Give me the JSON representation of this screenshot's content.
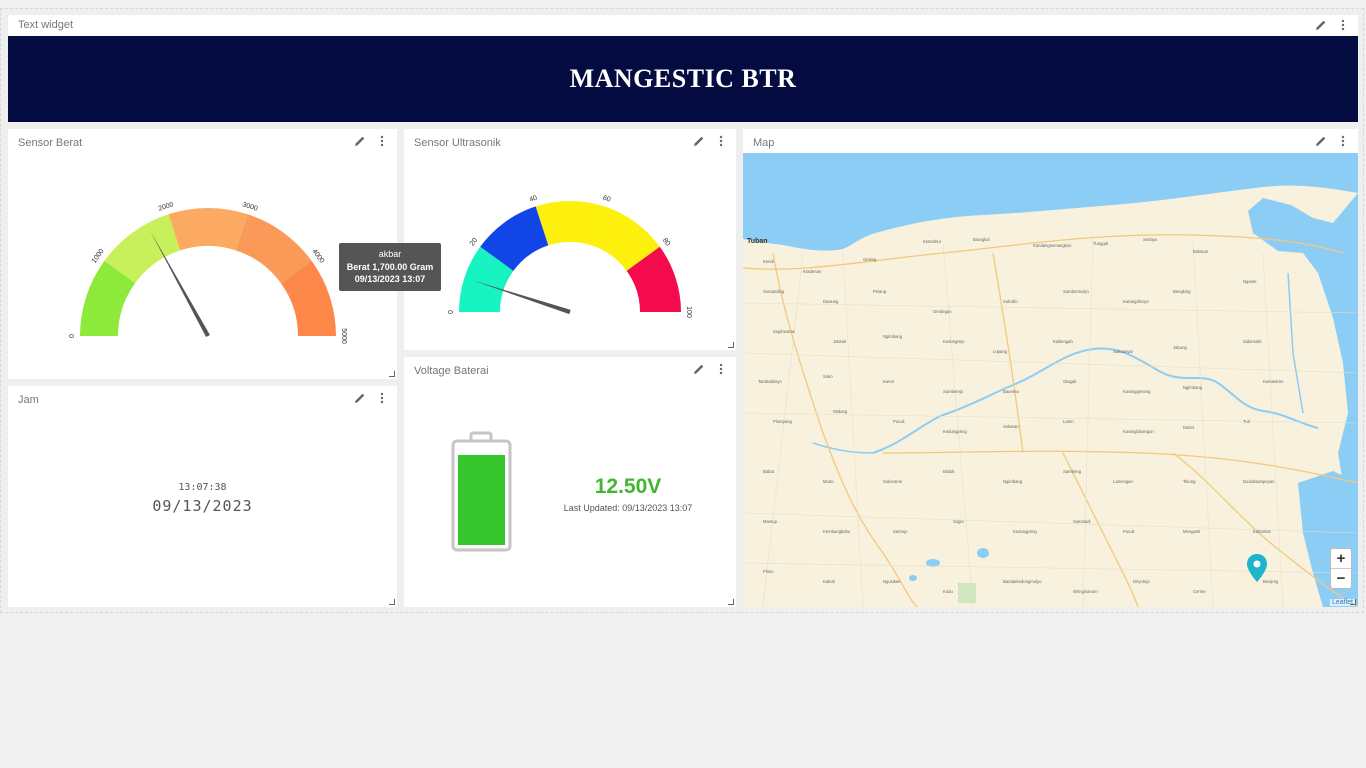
{
  "colors": {
    "banner_bg": "#040b40",
    "voltage_green": "#3fb830",
    "map_water": "#8ccdf5",
    "map_land": "#f7f1de"
  },
  "text_widget": {
    "title": "Text widget",
    "banner_text": "MANGESTIC BTR"
  },
  "sensor_berat": {
    "title": "Sensor Berat",
    "gauge": {
      "min": 0,
      "max": 5000,
      "value": 1700,
      "ticks": [
        "0",
        "1000",
        "2000",
        "3000",
        "4000",
        "5000"
      ]
    },
    "tooltip": {
      "name": "akbar",
      "value_line": "Berat 1,700.00 Gram",
      "date_line": "09/13/2023 13:07"
    }
  },
  "sensor_ultrasonik": {
    "title": "Sensor Ultrasonik",
    "gauge": {
      "min": 0,
      "max": 100,
      "value": 10,
      "ticks": [
        "0",
        "20",
        "40",
        "60",
        "80",
        "100"
      ]
    }
  },
  "jam": {
    "title": "Jam",
    "time": "13:07:38",
    "date": "09/13/2023"
  },
  "voltage_baterai": {
    "title": "Voltage Baterai",
    "value": "12.50V",
    "last_updated": "Last Updated: 09/13/2023 13:07",
    "charge_fraction": 1.0
  },
  "map": {
    "title": "Map",
    "city_label": "Tuban",
    "zoom_in": "+",
    "zoom_out": "−",
    "attribution": "Leaflet"
  },
  "icons": {
    "edit": "pencil-icon",
    "menu": "kebab-menu-icon",
    "marker": "map-pin-icon"
  }
}
